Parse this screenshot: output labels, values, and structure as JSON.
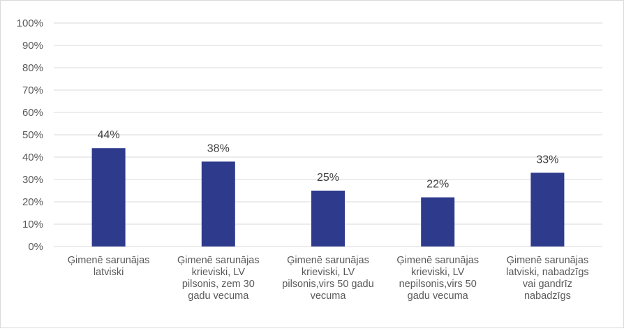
{
  "chart_data": {
    "type": "bar",
    "categories": [
      [
        "Ģimenē sarunājas",
        "latviski"
      ],
      [
        "Ģimenē sarunājas",
        "krieviski, LV",
        "pilsonis, zem 30",
        "gadu vecuma"
      ],
      [
        "Ģimenē sarunājas",
        "krieviski, LV",
        "pilsonis,virs 50 gadu",
        "vecuma"
      ],
      [
        "Ģimenē sarunājas",
        "krieviski, LV",
        "nepilsonis,virs 50",
        "gadu vecuma"
      ],
      [
        "Ģimenē sarunājas",
        "latviski, nabadzīgs",
        "vai gandrīz",
        "nabadzīgs"
      ]
    ],
    "values": [
      44,
      38,
      25,
      22,
      33
    ],
    "data_labels": [
      "44%",
      "38%",
      "25%",
      "22%",
      "33%"
    ],
    "y_ticks": [
      "0%",
      "10%",
      "20%",
      "30%",
      "40%",
      "50%",
      "60%",
      "70%",
      "80%",
      "90%",
      "100%"
    ],
    "ylim": [
      0,
      100
    ],
    "grid": true,
    "legend": "none",
    "bar_color": "#2e3a8c",
    "grid_color": "#d9d9d9"
  }
}
